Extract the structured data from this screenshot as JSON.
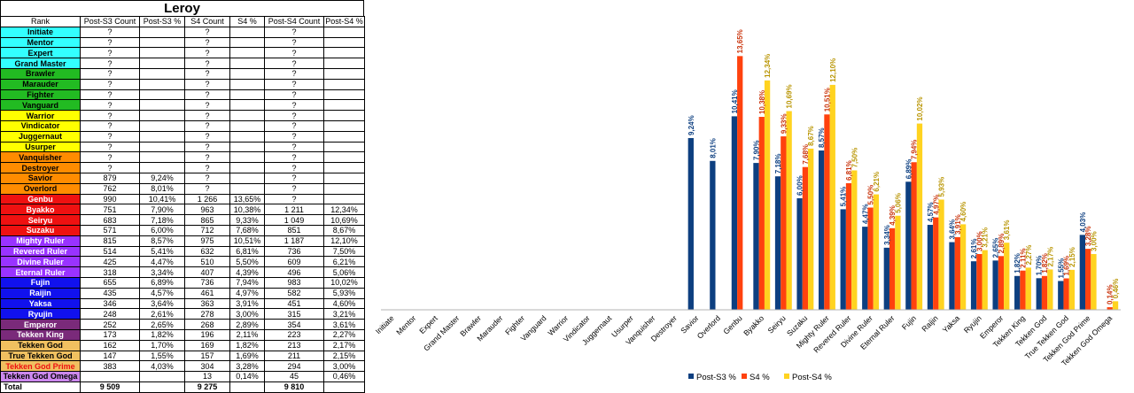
{
  "sheet": {
    "title": "Leroy",
    "headers": [
      "Rank",
      "Post-S3 Count",
      "Post-S3 %",
      "S4 Count",
      "S4 %",
      "Post-S4 Count",
      "Post-S4 %"
    ],
    "rows": [
      {
        "rank": "Initiate",
        "color": "#33ffff",
        "text_color": "#000000",
        "cells": [
          "?",
          "",
          "?",
          "",
          "?",
          ""
        ]
      },
      {
        "rank": "Mentor",
        "color": "#33ffff",
        "text_color": "#000000",
        "cells": [
          "?",
          "",
          "?",
          "",
          "?",
          ""
        ]
      },
      {
        "rank": "Expert",
        "color": "#33ffff",
        "text_color": "#000000",
        "cells": [
          "?",
          "",
          "?",
          "",
          "?",
          ""
        ]
      },
      {
        "rank": "Grand Master",
        "color": "#33ffff",
        "text_color": "#000000",
        "cells": [
          "?",
          "",
          "?",
          "",
          "?",
          ""
        ]
      },
      {
        "rank": "Brawler",
        "color": "#22bb22",
        "text_color": "#000000",
        "cells": [
          "?",
          "",
          "?",
          "",
          "?",
          ""
        ]
      },
      {
        "rank": "Marauder",
        "color": "#22bb22",
        "text_color": "#000000",
        "cells": [
          "?",
          "",
          "?",
          "",
          "?",
          ""
        ]
      },
      {
        "rank": "Fighter",
        "color": "#22bb22",
        "text_color": "#000000",
        "cells": [
          "?",
          "",
          "?",
          "",
          "?",
          ""
        ]
      },
      {
        "rank": "Vanguard",
        "color": "#22bb22",
        "text_color": "#000000",
        "cells": [
          "?",
          "",
          "?",
          "",
          "?",
          ""
        ]
      },
      {
        "rank": "Warrior",
        "color": "#ffff00",
        "text_color": "#000000",
        "cells": [
          "?",
          "",
          "?",
          "",
          "?",
          ""
        ]
      },
      {
        "rank": "Vindicator",
        "color": "#ffff00",
        "text_color": "#000000",
        "cells": [
          "?",
          "",
          "?",
          "",
          "?",
          ""
        ]
      },
      {
        "rank": "Juggernaut",
        "color": "#ffff00",
        "text_color": "#000000",
        "cells": [
          "?",
          "",
          "?",
          "",
          "?",
          ""
        ]
      },
      {
        "rank": "Usurper",
        "color": "#ffff00",
        "text_color": "#000000",
        "cells": [
          "?",
          "",
          "?",
          "",
          "?",
          ""
        ]
      },
      {
        "rank": "Vanquisher",
        "color": "#ff8c00",
        "text_color": "#000000",
        "cells": [
          "?",
          "",
          "?",
          "",
          "?",
          ""
        ]
      },
      {
        "rank": "Destroyer",
        "color": "#ff8c00",
        "text_color": "#000000",
        "cells": [
          "?",
          "",
          "?",
          "",
          "?",
          ""
        ]
      },
      {
        "rank": "Savior",
        "color": "#ff8c00",
        "text_color": "#000000",
        "cells": [
          "879",
          "9,24%",
          "?",
          "",
          "?",
          ""
        ]
      },
      {
        "rank": "Overlord",
        "color": "#ff8c00",
        "text_color": "#000000",
        "cells": [
          "762",
          "8,01%",
          "?",
          "",
          "?",
          ""
        ]
      },
      {
        "rank": "Genbu",
        "color": "#ee1111",
        "text_color": "#ffffff",
        "cells": [
          "990",
          "10,41%",
          "1 266",
          "13,65%",
          "?",
          ""
        ]
      },
      {
        "rank": "Byakko",
        "color": "#ee1111",
        "text_color": "#ffffff",
        "cells": [
          "751",
          "7,90%",
          "963",
          "10,38%",
          "1 211",
          "12,34%"
        ]
      },
      {
        "rank": "Seiryu",
        "color": "#ee1111",
        "text_color": "#ffffff",
        "cells": [
          "683",
          "7,18%",
          "865",
          "9,33%",
          "1 049",
          "10,69%"
        ]
      },
      {
        "rank": "Suzaku",
        "color": "#ee1111",
        "text_color": "#ffffff",
        "cells": [
          "571",
          "6,00%",
          "712",
          "7,68%",
          "851",
          "8,67%"
        ]
      },
      {
        "rank": "Mighty Ruler",
        "color": "#9933ff",
        "text_color": "#ffffff",
        "cells": [
          "815",
          "8,57%",
          "975",
          "10,51%",
          "1 187",
          "12,10%"
        ]
      },
      {
        "rank": "Revered Ruler",
        "color": "#9933ff",
        "text_color": "#ffffff",
        "cells": [
          "514",
          "5,41%",
          "632",
          "6,81%",
          "736",
          "7,50%"
        ]
      },
      {
        "rank": "Divine Ruler",
        "color": "#9933ff",
        "text_color": "#ffffff",
        "cells": [
          "425",
          "4,47%",
          "510",
          "5,50%",
          "609",
          "6,21%"
        ]
      },
      {
        "rank": "Eternal Ruler",
        "color": "#9933ff",
        "text_color": "#ffffff",
        "cells": [
          "318",
          "3,34%",
          "407",
          "4,39%",
          "496",
          "5,06%"
        ]
      },
      {
        "rank": "Fujin",
        "color": "#1111ee",
        "text_color": "#ffffff",
        "cells": [
          "655",
          "6,89%",
          "736",
          "7,94%",
          "983",
          "10,02%"
        ]
      },
      {
        "rank": "Raijin",
        "color": "#1111ee",
        "text_color": "#ffffff",
        "cells": [
          "435",
          "4,57%",
          "461",
          "4,97%",
          "582",
          "5,93%"
        ]
      },
      {
        "rank": "Yaksa",
        "color": "#1111ee",
        "text_color": "#ffffff",
        "cells": [
          "346",
          "3,64%",
          "363",
          "3,91%",
          "451",
          "4,60%"
        ]
      },
      {
        "rank": "Ryujin",
        "color": "#1111ee",
        "text_color": "#ffffff",
        "cells": [
          "248",
          "2,61%",
          "278",
          "3,00%",
          "315",
          "3,21%"
        ]
      },
      {
        "rank": "Emperor",
        "color": "#7a2a7a",
        "text_color": "#ffffff",
        "cells": [
          "252",
          "2,65%",
          "268",
          "2,89%",
          "354",
          "3,61%"
        ]
      },
      {
        "rank": "Tekken King",
        "color": "#7a2a7a",
        "text_color": "#ffffff",
        "cells": [
          "173",
          "1,82%",
          "196",
          "2,11%",
          "223",
          "2,27%"
        ]
      },
      {
        "rank": "Tekken God",
        "color": "#f0c060",
        "text_color": "#000000",
        "cells": [
          "162",
          "1,70%",
          "169",
          "1,82%",
          "213",
          "2,17%"
        ]
      },
      {
        "rank": "True Tekken God",
        "color": "#f0c060",
        "text_color": "#000000",
        "cells": [
          "147",
          "1,55%",
          "157",
          "1,69%",
          "211",
          "2,15%"
        ]
      },
      {
        "rank": "Tekken God Prime",
        "color": "#f0c060",
        "text_color": "#ee1111",
        "cells": [
          "383",
          "4,03%",
          "304",
          "3,28%",
          "294",
          "3,00%"
        ]
      },
      {
        "rank": "Tekken God Omega",
        "color": "#cc88ee",
        "text_color": "#000000",
        "cells": [
          "",
          "",
          "13",
          "0,14%",
          "45",
          "0,46%"
        ]
      }
    ],
    "total": {
      "label": "Total",
      "cells": [
        "9 509",
        "",
        "9 275",
        "",
        "9 810",
        ""
      ]
    }
  },
  "chart_data": {
    "type": "bar",
    "categories": [
      "Initiate",
      "Mentor",
      "Expert",
      "Grand Master",
      "Brawler",
      "Marauder",
      "Fighter",
      "Vanguard",
      "Warrior",
      "Vindicator",
      "Juggernaut",
      "Usurper",
      "Vanquisher",
      "Destroyer",
      "Savior",
      "Overlord",
      "Genbu",
      "Byakko",
      "Seiryu",
      "Suzaku",
      "Mighty Ruler",
      "Revered Ruler",
      "Divine Ruler",
      "Eternal Ruler",
      "Fujin",
      "Raijin",
      "Yaksa",
      "Ryujin",
      "Emperor",
      "Tekken King",
      "Tekken God",
      "True Tekken God",
      "Tekken God Prime",
      "Tekken God Omega"
    ],
    "series": [
      {
        "name": "Post-S3 %",
        "color": "#0d3f80",
        "label_color": "#0d3f80",
        "values": [
          null,
          null,
          null,
          null,
          null,
          null,
          null,
          null,
          null,
          null,
          null,
          null,
          null,
          null,
          9.24,
          8.01,
          10.41,
          7.9,
          7.18,
          6.0,
          8.57,
          5.41,
          4.47,
          3.34,
          6.89,
          4.57,
          3.64,
          2.61,
          2.65,
          1.82,
          1.7,
          1.55,
          4.03,
          null
        ],
        "labels": [
          null,
          null,
          null,
          null,
          null,
          null,
          null,
          null,
          null,
          null,
          null,
          null,
          null,
          null,
          "9,24%",
          "8,01%",
          "10,41%",
          "7,90%",
          "7,18%",
          "6,00%",
          "8,57%",
          "5,41%",
          "4,47%",
          "3,34%",
          "6,89%",
          "4,57%",
          "3,64%",
          "2,61%",
          "2,65%",
          "1,82%",
          "1,70%",
          "1,55%",
          "4,03%",
          null
        ]
      },
      {
        "name": "S4 %",
        "color": "#ff420e",
        "label_color": "#c9330b",
        "values": [
          null,
          null,
          null,
          null,
          null,
          null,
          null,
          null,
          null,
          null,
          null,
          null,
          null,
          null,
          null,
          null,
          13.65,
          10.38,
          9.33,
          7.68,
          10.51,
          6.81,
          5.5,
          4.39,
          7.94,
          4.97,
          3.91,
          3.0,
          2.89,
          2.11,
          1.82,
          1.69,
          3.28,
          0.14
        ],
        "labels": [
          null,
          null,
          null,
          null,
          null,
          null,
          null,
          null,
          null,
          null,
          null,
          null,
          null,
          null,
          null,
          null,
          "13,65%",
          "10,38%",
          "9,33%",
          "7,68%",
          "10,51%",
          "6,81%",
          "5,50%",
          "4,39%",
          "7,94%",
          "4,97%",
          "3,91%",
          "3,00%",
          "2,89%",
          "2,11%",
          "1,82%",
          "1,69%",
          "3,28%",
          "0,14%"
        ]
      },
      {
        "name": "Post-S4 %",
        "color": "#ffd320",
        "label_color": "#b89400",
        "values": [
          null,
          null,
          null,
          null,
          null,
          null,
          null,
          null,
          null,
          null,
          null,
          null,
          null,
          null,
          null,
          null,
          null,
          12.34,
          10.69,
          8.67,
          12.1,
          7.5,
          6.21,
          5.06,
          10.02,
          5.93,
          4.6,
          3.21,
          3.61,
          2.27,
          2.17,
          2.15,
          3.0,
          0.46
        ],
        "labels": [
          null,
          null,
          null,
          null,
          null,
          null,
          null,
          null,
          null,
          null,
          null,
          null,
          null,
          null,
          null,
          null,
          null,
          "12,34%",
          "10,69%",
          "8,67%",
          "12,10%",
          "7,50%",
          "6,21%",
          "5,06%",
          "10,02%",
          "5,93%",
          "4,60%",
          "3,21%",
          "3,61%",
          "2,27%",
          "2,17%",
          "2,15%",
          "3,00%",
          "0,46%"
        ]
      }
    ],
    "ylim": [
      0,
      16
    ],
    "grid": false,
    "legend_position": "bottom"
  }
}
